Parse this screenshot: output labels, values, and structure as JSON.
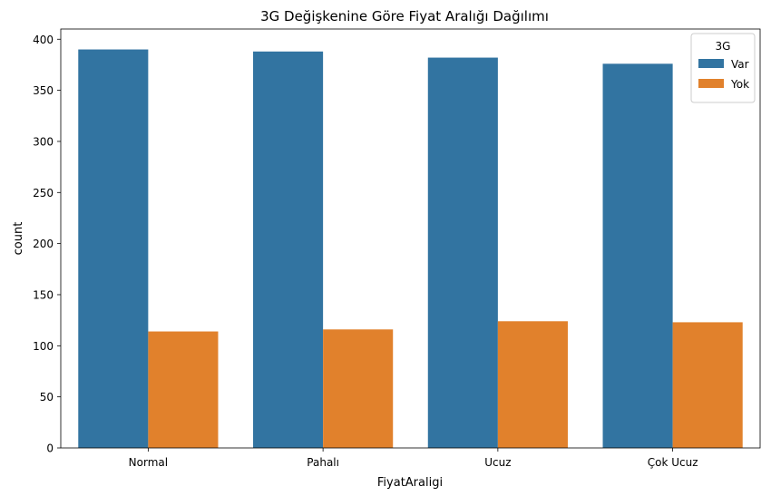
{
  "chart_data": {
    "type": "bar",
    "title": "3G Değişkenine Göre Fiyat Aralığı Dağılımı",
    "xlabel": "FiyatAraligi",
    "ylabel": "count",
    "categories": [
      "Normal",
      "Pahalı",
      "Ucuz",
      "Çok Ucuz"
    ],
    "series": [
      {
        "name": "Var",
        "color": "#3274a1",
        "values": [
          390,
          388,
          382,
          376
        ]
      },
      {
        "name": "Yok",
        "color": "#e1812c",
        "values": [
          114,
          116,
          124,
          123
        ]
      }
    ],
    "ylim": [
      0,
      410
    ],
    "yticks": [
      0,
      50,
      100,
      150,
      200,
      250,
      300,
      350,
      400
    ],
    "legend": {
      "title": "3G",
      "placement": "top-right"
    },
    "grid": false
  }
}
